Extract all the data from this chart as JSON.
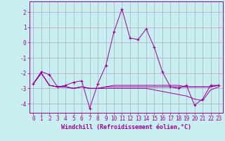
{
  "xlabel": "Windchill (Refroidissement éolien,°C)",
  "background_color": "#c8eef0",
  "line_color": "#990099",
  "grid_color": "#aaaacc",
  "x": [
    0,
    1,
    2,
    3,
    4,
    5,
    6,
    7,
    8,
    9,
    10,
    11,
    12,
    13,
    14,
    15,
    16,
    17,
    18,
    19,
    20,
    21,
    22,
    23
  ],
  "y_main": [
    -2.7,
    -1.9,
    -2.1,
    -2.9,
    -2.8,
    -2.6,
    -2.5,
    -4.3,
    -2.7,
    -1.5,
    0.7,
    2.2,
    0.3,
    0.2,
    0.9,
    -0.3,
    -1.9,
    -2.9,
    -3.0,
    -2.8,
    -4.1,
    -3.7,
    -2.8,
    -2.8
  ],
  "y_line2": [
    -2.7,
    -2.0,
    -2.8,
    -2.9,
    -2.9,
    -3.0,
    -2.9,
    -3.0,
    -3.0,
    -2.9,
    -2.9,
    -2.9,
    -2.9,
    -2.9,
    -2.9,
    -2.9,
    -2.9,
    -2.9,
    -2.9,
    -2.9,
    -2.9,
    -2.9,
    -2.9,
    -2.8
  ],
  "y_line3": [
    -2.7,
    -2.0,
    -2.8,
    -2.9,
    -2.9,
    -3.0,
    -2.9,
    -3.0,
    -3.0,
    -2.9,
    -2.8,
    -2.8,
    -2.8,
    -2.8,
    -2.8,
    -2.8,
    -2.8,
    -2.8,
    -2.8,
    -2.9,
    -2.9,
    -2.9,
    -2.9,
    -2.8
  ],
  "y_line4": [
    -2.7,
    -2.0,
    -2.8,
    -2.9,
    -2.9,
    -3.0,
    -2.9,
    -3.0,
    -3.0,
    -3.0,
    -3.0,
    -3.0,
    -3.0,
    -3.0,
    -3.0,
    -3.1,
    -3.2,
    -3.3,
    -3.4,
    -3.5,
    -3.7,
    -3.8,
    -3.1,
    -2.9
  ],
  "ylim": [
    -4.6,
    2.7
  ],
  "xlim": [
    -0.5,
    23.5
  ],
  "yticks": [
    -4,
    -3,
    -2,
    -1,
    0,
    1,
    2
  ],
  "xticks": [
    0,
    1,
    2,
    3,
    4,
    5,
    6,
    7,
    8,
    9,
    10,
    11,
    12,
    13,
    14,
    15,
    16,
    17,
    18,
    19,
    20,
    21,
    22,
    23
  ],
  "xlabel_fontsize": 6.0,
  "tick_fontsize": 5.5
}
